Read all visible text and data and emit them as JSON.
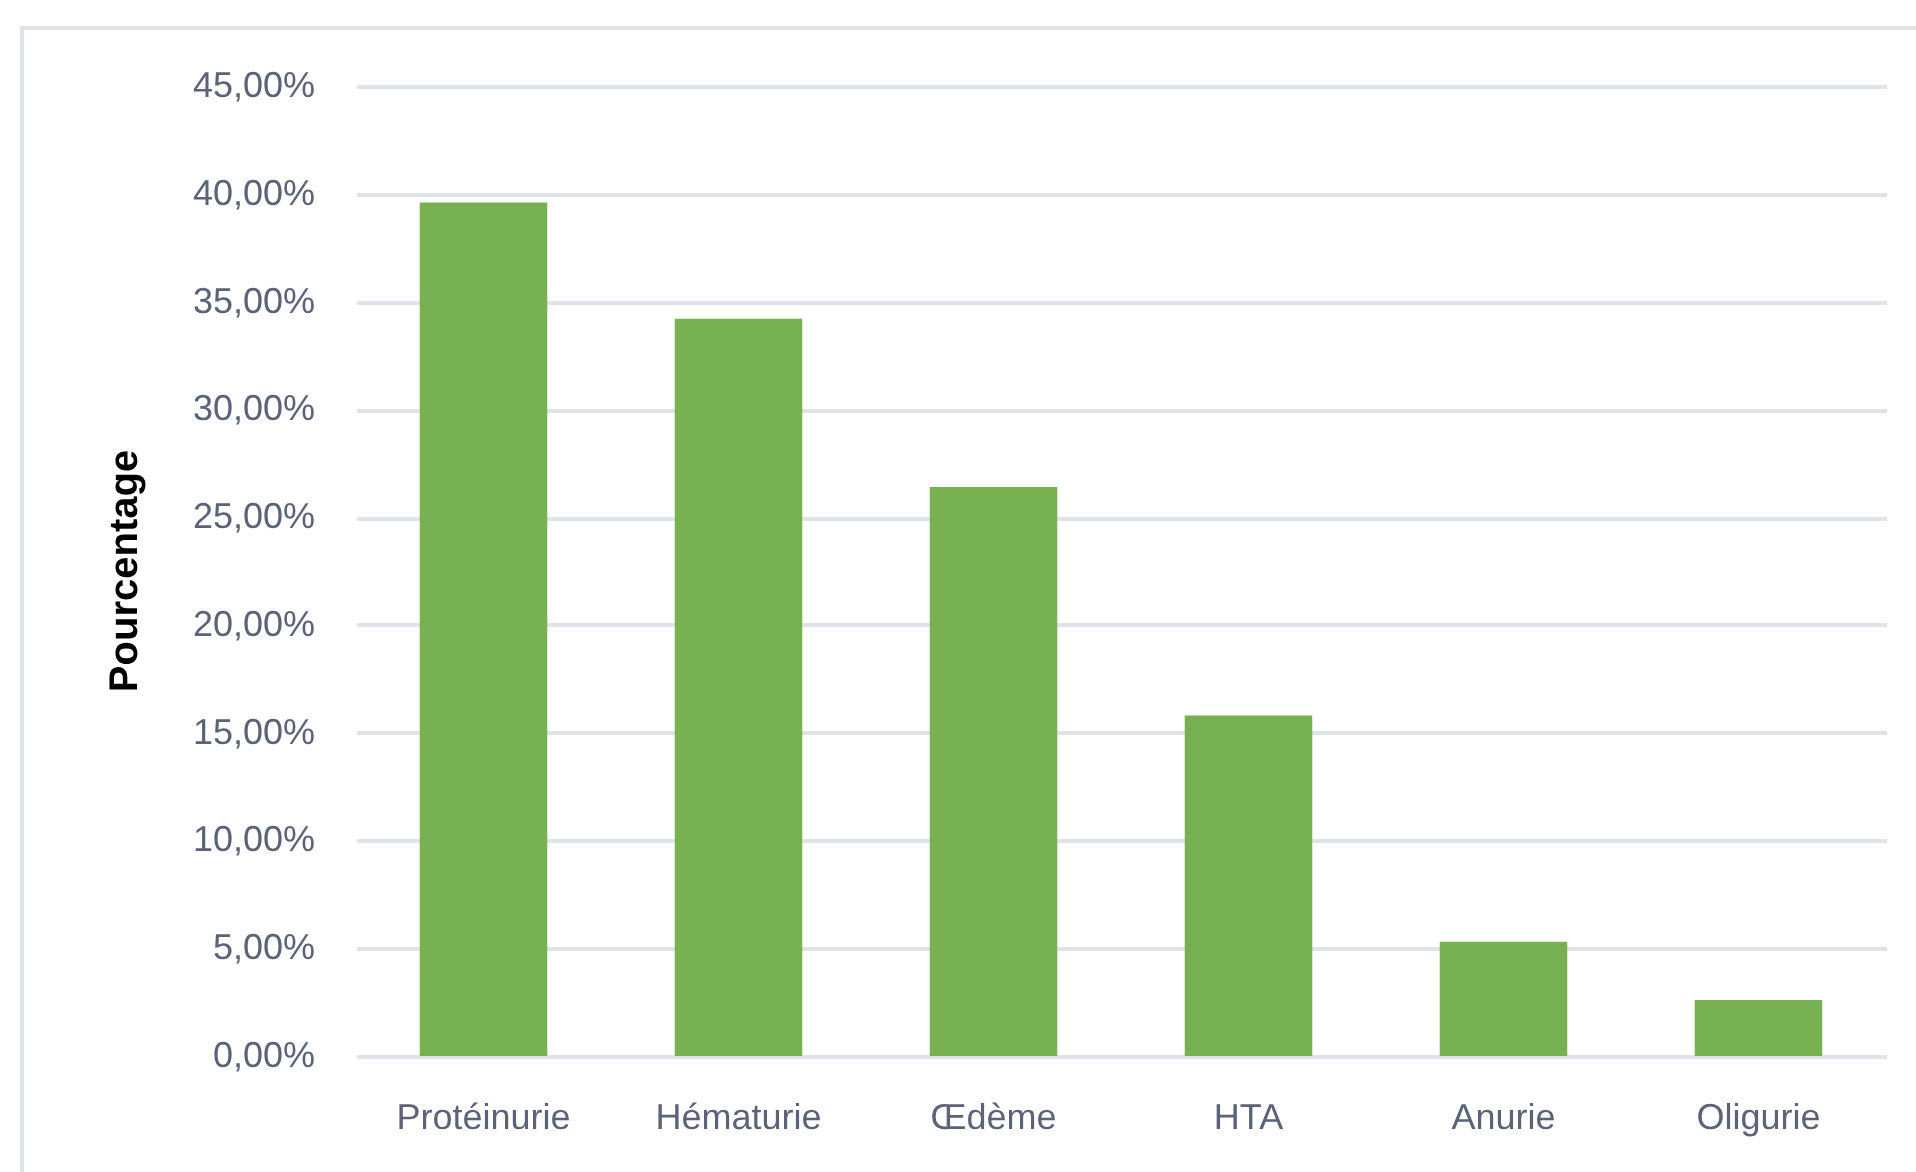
{
  "chart_data": {
    "type": "bar",
    "ylabel": "Pourcentage",
    "categories": [
      "Protéinurie",
      "Hématurie",
      "Œdème",
      "HTA",
      "Anurie",
      "Oligurie"
    ],
    "values": [
      39.6,
      34.2,
      26.4,
      15.8,
      5.3,
      2.6
    ],
    "color": "#77b152",
    "ylim": [
      0,
      45
    ],
    "yticks": [
      {
        "value": 0,
        "label": "0,00%"
      },
      {
        "value": 5,
        "label": "5,00%"
      },
      {
        "value": 10,
        "label": "10,00%"
      },
      {
        "value": 15,
        "label": "15,00%"
      },
      {
        "value": 20,
        "label": "20,00%"
      },
      {
        "value": 25,
        "label": "25,00%"
      },
      {
        "value": 30,
        "label": "30,00%"
      },
      {
        "value": 35,
        "label": "35,00%"
      },
      {
        "value": 40,
        "label": "40,00%"
      },
      {
        "value": 45,
        "label": "45,00%"
      }
    ],
    "grid": "y"
  }
}
